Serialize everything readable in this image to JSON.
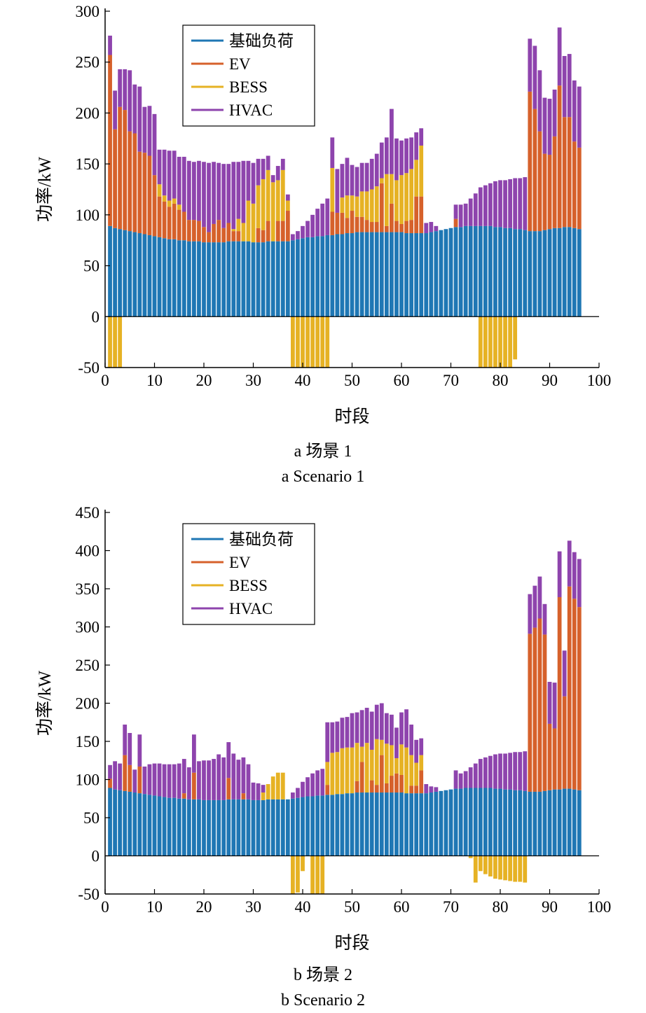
{
  "chart_data": [
    {
      "type": "bar",
      "stacked": true,
      "xlabel": "时段",
      "ylabel": "功率/kW",
      "xlim": [
        0,
        100
      ],
      "ylim": [
        -50,
        300
      ],
      "xticks": [
        0,
        10,
        20,
        30,
        40,
        50,
        60,
        70,
        80,
        90,
        100
      ],
      "yticks": [
        -50,
        0,
        50,
        100,
        150,
        200,
        250,
        300
      ],
      "legend_position": "top-left",
      "caption_cn": "a  场景 1",
      "caption_en": "a  Scenario 1",
      "colors": {
        "base": "#1f77b4",
        "ev": "#d6612b",
        "bess": "#e6b224",
        "hvac": "#8e44ad"
      },
      "x": [
        1,
        2,
        3,
        4,
        5,
        6,
        7,
        8,
        9,
        10,
        11,
        12,
        13,
        14,
        15,
        16,
        17,
        18,
        19,
        20,
        21,
        22,
        23,
        24,
        25,
        26,
        27,
        28,
        29,
        30,
        31,
        32,
        33,
        34,
        35,
        36,
        37,
        38,
        39,
        40,
        41,
        42,
        43,
        44,
        45,
        46,
        47,
        48,
        49,
        50,
        51,
        52,
        53,
        54,
        55,
        56,
        57,
        58,
        59,
        60,
        61,
        62,
        63,
        64,
        65,
        66,
        67,
        68,
        69,
        70,
        71,
        72,
        73,
        74,
        75,
        76,
        77,
        78,
        79,
        80,
        81,
        82,
        83,
        84,
        85,
        86,
        87,
        88,
        89,
        90,
        91,
        92,
        93,
        94,
        95,
        96
      ],
      "series": [
        {
          "name": "基础负荷",
          "key": "base",
          "values": [
            89,
            87,
            86,
            85,
            84,
            83,
            82,
            81,
            80,
            79,
            78,
            77,
            76,
            76,
            75,
            75,
            74,
            74,
            74,
            73,
            73,
            73,
            73,
            73,
            74,
            74,
            74,
            74,
            74,
            73,
            73,
            73,
            74,
            74,
            74,
            74,
            74,
            75,
            76,
            77,
            78,
            78,
            79,
            79,
            80,
            80,
            81,
            81,
            82,
            82,
            83,
            83,
            83,
            83,
            83,
            83,
            83,
            83,
            83,
            83,
            82,
            82,
            82,
            82,
            82,
            83,
            84,
            85,
            86,
            87,
            88,
            88,
            89,
            89,
            89,
            89,
            89,
            89,
            88,
            88,
            87,
            87,
            86,
            86,
            85,
            84,
            84,
            84,
            85,
            86,
            87,
            87,
            88,
            88,
            87,
            86
          ]
        },
        {
          "name": "EV",
          "key": "ev",
          "values": [
            168,
            97,
            120,
            118,
            98,
            97,
            80,
            80,
            78,
            60,
            40,
            36,
            32,
            35,
            30,
            28,
            21,
            21,
            20,
            15,
            10,
            18,
            22,
            14,
            18,
            10,
            10,
            0,
            0,
            0,
            14,
            12,
            20,
            0,
            20,
            20,
            30,
            0,
            0,
            0,
            0,
            0,
            0,
            0,
            0,
            23,
            21,
            21,
            15,
            22,
            15,
            15,
            12,
            10,
            10,
            48,
            6,
            28,
            11,
            8,
            12,
            13,
            36,
            36,
            0,
            0,
            0,
            0,
            0,
            0,
            8,
            0,
            0,
            0,
            0,
            0,
            0,
            0,
            0,
            0,
            0,
            0,
            0,
            0,
            0,
            137,
            120,
            98,
            75,
            73,
            90,
            140,
            108,
            108,
            85,
            80
          ]
        },
        {
          "name": "BESS",
          "key": "bess",
          "values": [
            -62,
            -65,
            -60,
            0,
            0,
            0,
            0,
            0,
            0,
            0,
            12,
            6,
            6,
            5,
            5,
            0,
            0,
            0,
            0,
            0,
            0,
            0,
            0,
            0,
            0,
            2,
            12,
            18,
            40,
            38,
            42,
            50,
            50,
            58,
            40,
            50,
            10,
            -60,
            -55,
            -60,
            -58,
            -60,
            -60,
            -65,
            -58,
            43,
            0,
            15,
            22,
            15,
            20,
            25,
            28,
            32,
            35,
            5,
            51,
            29,
            40,
            48,
            47,
            50,
            36,
            50,
            0,
            0,
            0,
            0,
            0,
            0,
            0,
            0,
            0,
            0,
            0,
            -55,
            -60,
            -58,
            -60,
            -55,
            -60,
            -60,
            -42,
            0,
            0,
            0,
            0,
            0,
            0,
            0,
            0,
            0,
            0,
            0,
            0,
            0
          ]
        },
        {
          "name": "HVAC",
          "key": "hvac",
          "values": [
            19,
            38,
            37,
            40,
            60,
            48,
            64,
            45,
            49,
            60,
            34,
            45,
            49,
            47,
            47,
            54,
            58,
            57,
            59,
            64,
            68,
            61,
            56,
            63,
            58,
            66,
            56,
            61,
            39,
            40,
            26,
            20,
            14,
            7,
            14,
            11,
            6,
            6,
            8,
            12,
            16,
            22,
            27,
            32,
            36,
            30,
            43,
            33,
            37,
            30,
            29,
            28,
            28,
            30,
            32,
            35,
            36,
            64,
            41,
            34,
            34,
            31,
            27,
            17,
            10,
            10,
            5,
            0,
            0,
            0,
            14,
            22,
            22,
            27,
            32,
            38,
            40,
            42,
            45,
            46,
            47,
            48,
            50,
            50,
            52,
            52,
            62,
            60,
            55,
            55,
            46,
            57,
            60,
            62,
            60,
            60
          ]
        }
      ]
    },
    {
      "type": "bar",
      "stacked": true,
      "xlabel": "时段",
      "ylabel": "功率/kW",
      "xlim": [
        0,
        100
      ],
      "ylim": [
        -50,
        450
      ],
      "xticks": [
        0,
        10,
        20,
        30,
        40,
        50,
        60,
        70,
        80,
        90,
        100
      ],
      "yticks": [
        -50,
        0,
        50,
        100,
        150,
        200,
        250,
        300,
        350,
        400,
        450
      ],
      "legend_position": "top-left",
      "caption_cn": "b  场景 2",
      "caption_en": "b  Scenario 2",
      "colors": {
        "base": "#1f77b4",
        "ev": "#d6612b",
        "bess": "#e6b224",
        "hvac": "#8e44ad"
      },
      "x": [
        1,
        2,
        3,
        4,
        5,
        6,
        7,
        8,
        9,
        10,
        11,
        12,
        13,
        14,
        15,
        16,
        17,
        18,
        19,
        20,
        21,
        22,
        23,
        24,
        25,
        26,
        27,
        28,
        29,
        30,
        31,
        32,
        33,
        34,
        35,
        36,
        37,
        38,
        39,
        40,
        41,
        42,
        43,
        44,
        45,
        46,
        47,
        48,
        49,
        50,
        51,
        52,
        53,
        54,
        55,
        56,
        57,
        58,
        59,
        60,
        61,
        62,
        63,
        64,
        65,
        66,
        67,
        68,
        69,
        70,
        71,
        72,
        73,
        74,
        75,
        76,
        77,
        78,
        79,
        80,
        81,
        82,
        83,
        84,
        85,
        86,
        87,
        88,
        89,
        90,
        91,
        92,
        93,
        94,
        95,
        96
      ],
      "series": [
        {
          "name": "基础负荷",
          "key": "base",
          "values": [
            89,
            87,
            86,
            85,
            84,
            83,
            82,
            81,
            80,
            79,
            78,
            77,
            76,
            76,
            75,
            75,
            74,
            74,
            74,
            73,
            73,
            73,
            73,
            73,
            74,
            74,
            74,
            74,
            74,
            73,
            73,
            73,
            74,
            74,
            74,
            74,
            74,
            75,
            76,
            77,
            78,
            78,
            79,
            79,
            80,
            80,
            81,
            81,
            82,
            82,
            83,
            83,
            83,
            83,
            83,
            83,
            83,
            83,
            83,
            83,
            82,
            82,
            82,
            82,
            82,
            83,
            84,
            85,
            86,
            87,
            88,
            88,
            89,
            89,
            89,
            89,
            89,
            89,
            88,
            88,
            87,
            87,
            86,
            86,
            85,
            84,
            84,
            84,
            85,
            86,
            87,
            87,
            88,
            88,
            87,
            86
          ]
        },
        {
          "name": "EV",
          "key": "ev",
          "values": [
            12,
            0,
            0,
            47,
            35,
            0,
            35,
            0,
            0,
            0,
            0,
            0,
            0,
            0,
            0,
            7,
            0,
            35,
            0,
            0,
            0,
            0,
            0,
            0,
            28,
            0,
            0,
            8,
            0,
            0,
            0,
            0,
            0,
            0,
            0,
            0,
            0,
            0,
            0,
            0,
            0,
            0,
            0,
            0,
            13,
            0,
            0,
            0,
            0,
            0,
            15,
            40,
            0,
            16,
            10,
            49,
            12,
            22,
            25,
            23,
            0,
            10,
            10,
            30,
            0,
            0,
            0,
            0,
            0,
            0,
            0,
            0,
            0,
            0,
            0,
            0,
            0,
            0,
            0,
            0,
            0,
            0,
            0,
            0,
            0,
            207,
            215,
            227,
            205,
            87,
            80,
            252,
            121,
            265,
            250,
            240
          ]
        },
        {
          "name": "BESS",
          "key": "bess",
          "values": [
            0,
            0,
            0,
            0,
            0,
            0,
            0,
            0,
            0,
            0,
            0,
            0,
            0,
            0,
            0,
            0,
            0,
            0,
            0,
            0,
            0,
            0,
            0,
            0,
            0,
            0,
            0,
            0,
            0,
            0,
            0,
            10,
            20,
            30,
            35,
            35,
            0,
            -58,
            -48,
            -20,
            0,
            -55,
            -55,
            -58,
            30,
            55,
            55,
            60,
            60,
            60,
            50,
            20,
            65,
            40,
            60,
            20,
            52,
            40,
            20,
            40,
            60,
            40,
            30,
            20,
            0,
            0,
            0,
            0,
            0,
            0,
            0,
            0,
            0,
            -3,
            -35,
            -20,
            -24,
            -27,
            -30,
            -31,
            -32,
            -33,
            -34,
            -34,
            -35,
            0,
            0,
            0,
            0,
            0,
            0,
            0,
            0,
            0,
            0,
            0
          ]
        },
        {
          "name": "HVAC",
          "key": "hvac",
          "values": [
            18,
            37,
            35,
            40,
            42,
            30,
            42,
            36,
            40,
            42,
            43,
            43,
            44,
            44,
            46,
            45,
            42,
            50,
            50,
            52,
            52,
            54,
            60,
            56,
            47,
            60,
            52,
            47,
            46,
            23,
            22,
            10,
            0,
            0,
            0,
            0,
            0,
            8,
            13,
            20,
            25,
            30,
            33,
            35,
            52,
            40,
            40,
            40,
            40,
            45,
            40,
            48,
            46,
            50,
            45,
            48,
            40,
            40,
            40,
            42,
            50,
            40,
            30,
            22,
            12,
            8,
            6,
            0,
            0,
            0,
            24,
            20,
            22,
            27,
            32,
            38,
            40,
            42,
            45,
            46,
            47,
            48,
            50,
            50,
            52,
            52,
            55,
            55,
            40,
            55,
            60,
            60,
            60,
            60,
            61,
            63
          ]
        }
      ]
    }
  ]
}
